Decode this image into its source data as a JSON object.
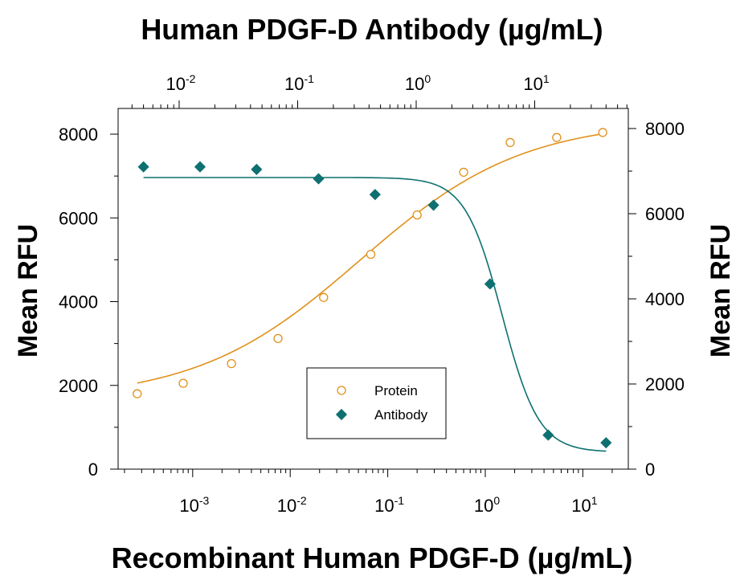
{
  "chart_data": {
    "type": "scatter",
    "title_top": "Human PDGF-D Antibody (µg/mL)",
    "xlabel": "Recombinant Human PDGF-D (µg/mL)",
    "ylabel_left": "Mean RFU",
    "ylabel_right": "Mean RFU",
    "bottom_axis": {
      "scale": "log",
      "ticks": [
        {
          "value": 0.001,
          "base": "10",
          "exp": "-3"
        },
        {
          "value": 0.01,
          "base": "10",
          "exp": "-2"
        },
        {
          "value": 0.1,
          "base": "10",
          "exp": "-1"
        },
        {
          "value": 1,
          "base": "10",
          "exp": "0"
        },
        {
          "value": 10,
          "base": "10",
          "exp": "1"
        }
      ]
    },
    "top_axis": {
      "scale": "log",
      "ticks": [
        {
          "value": 0.01,
          "base": "10",
          "exp": "-2"
        },
        {
          "value": 0.1,
          "base": "10",
          "exp": "-1"
        },
        {
          "value": 1,
          "base": "10",
          "exp": "0"
        },
        {
          "value": 10,
          "base": "10",
          "exp": "1"
        }
      ]
    },
    "left_axis": {
      "ylim": [
        0,
        8500
      ],
      "ticks": [
        "0",
        "2000",
        "4000",
        "6000",
        "8000"
      ]
    },
    "right_axis": {
      "ylim": [
        0,
        8500
      ],
      "ticks": [
        "0",
        "2000",
        "4000",
        "6000",
        "8000"
      ]
    },
    "legend": {
      "position": "bottom-center",
      "entries": [
        {
          "label": "Protein",
          "marker": "open-circle",
          "color": "#e0901a"
        },
        {
          "label": "Antibody",
          "marker": "filled-diamond",
          "color": "#0e7070"
        }
      ]
    },
    "series": [
      {
        "name": "Protein",
        "axis": "bottom",
        "color": "#e0901a",
        "points": [
          {
            "x": 0.00027,
            "y": 1800
          },
          {
            "x": 0.0008,
            "y": 2050
          },
          {
            "x": 0.0025,
            "y": 2520
          },
          {
            "x": 0.0075,
            "y": 3120
          },
          {
            "x": 0.022,
            "y": 4100
          },
          {
            "x": 0.067,
            "y": 5130
          },
          {
            "x": 0.2,
            "y": 6070
          },
          {
            "x": 0.6,
            "y": 7090
          },
          {
            "x": 1.8,
            "y": 7800
          },
          {
            "x": 5.4,
            "y": 7920
          },
          {
            "x": 16,
            "y": 8040
          }
        ],
        "fit": {
          "bottom": 1650,
          "top": 8330,
          "ec50": 0.052,
          "hill": 0.52
        }
      },
      {
        "name": "Antibody",
        "axis": "top",
        "color": "#0e7070",
        "points": [
          {
            "x": 0.005,
            "y": 7100
          },
          {
            "x": 0.015,
            "y": 7100
          },
          {
            "x": 0.045,
            "y": 7040
          },
          {
            "x": 0.15,
            "y": 6820
          },
          {
            "x": 0.45,
            "y": 6450
          },
          {
            "x": 1.4,
            "y": 6200
          },
          {
            "x": 4.2,
            "y": 4350
          },
          {
            "x": 13,
            "y": 800
          },
          {
            "x": 40,
            "y": 620
          }
        ],
        "fit": {
          "bottom": 400,
          "top": 6850,
          "ic50": 5.3,
          "hill": 2.8
        }
      }
    ]
  }
}
